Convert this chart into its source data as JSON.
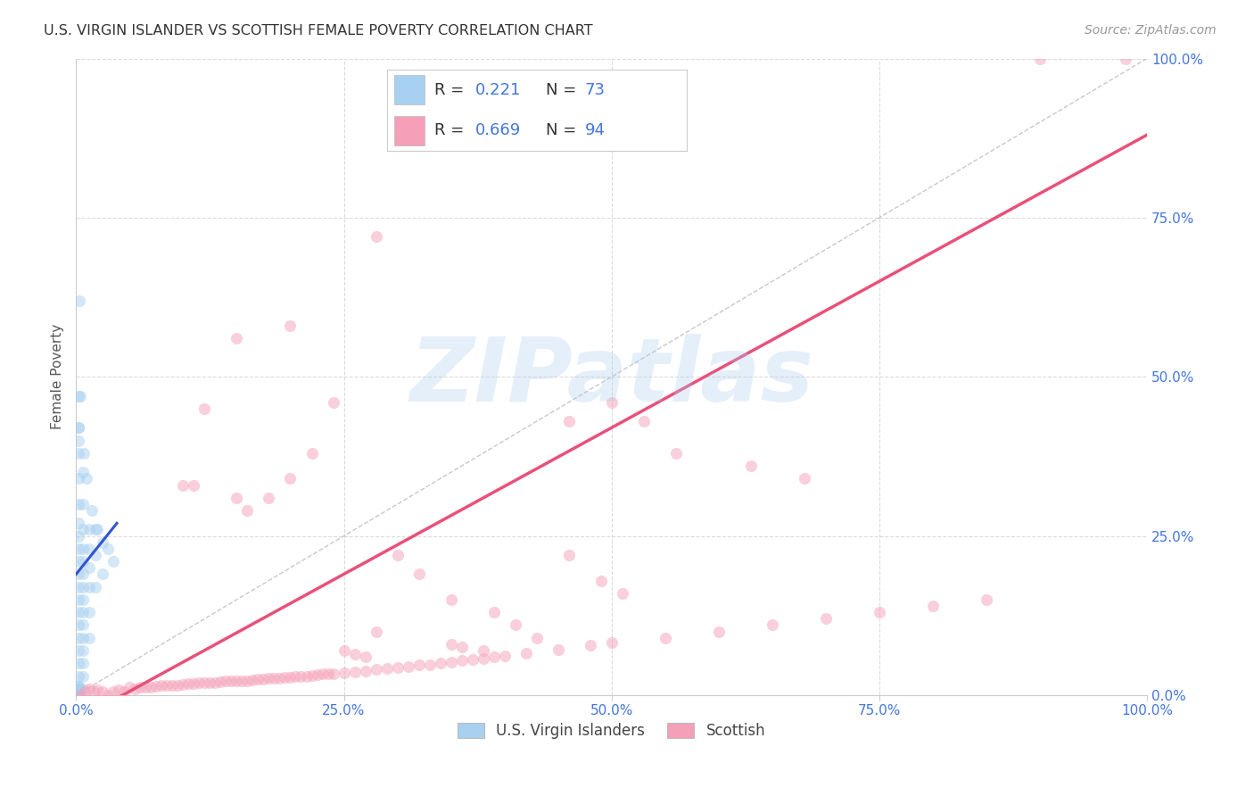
{
  "title": "U.S. VIRGIN ISLANDER VS SCOTTISH FEMALE POVERTY CORRELATION CHART",
  "source": "Source: ZipAtlas.com",
  "ylabel": "Female Poverty",
  "xlim": [
    0,
    1
  ],
  "ylim": [
    0,
    1
  ],
  "ytick_labels": [
    "0.0%",
    "25.0%",
    "50.0%",
    "75.0%",
    "100.0%"
  ],
  "ytick_values": [
    0.0,
    0.25,
    0.5,
    0.75,
    1.0
  ],
  "xtick_values": [
    0.0,
    0.25,
    0.5,
    0.75,
    1.0
  ],
  "xtick_labels": [
    "0.0%",
    "25.0%",
    "50.0%",
    "75.0%",
    "100.0%"
  ],
  "watermark": "ZIPatlas",
  "color_blue": "#A8D0F0",
  "color_pink": "#F5A0B8",
  "line_blue": "#3355CC",
  "line_pink": "#E8517A",
  "text_blue": "#4477DD",
  "title_color": "#333333",
  "grid_color": "#CCCCCC",
  "background": "#FFFFFF",
  "scatter_alpha": 0.5,
  "scatter_size": 90,
  "vi_points": [
    [
      0.002,
      0.47
    ],
    [
      0.002,
      0.42
    ],
    [
      0.002,
      0.38
    ],
    [
      0.002,
      0.34
    ],
    [
      0.002,
      0.3
    ],
    [
      0.002,
      0.27
    ],
    [
      0.002,
      0.25
    ],
    [
      0.002,
      0.23
    ],
    [
      0.002,
      0.21
    ],
    [
      0.002,
      0.19
    ],
    [
      0.002,
      0.17
    ],
    [
      0.002,
      0.15
    ],
    [
      0.002,
      0.13
    ],
    [
      0.002,
      0.11
    ],
    [
      0.002,
      0.09
    ],
    [
      0.002,
      0.07
    ],
    [
      0.002,
      0.05
    ],
    [
      0.002,
      0.03
    ],
    [
      0.002,
      0.01
    ],
    [
      0.002,
      0.005
    ],
    [
      0.002,
      0.002
    ],
    [
      0.002,
      0.001
    ],
    [
      0.002,
      0.0
    ],
    [
      0.002,
      0.0
    ],
    [
      0.002,
      0.0
    ],
    [
      0.002,
      0.0
    ],
    [
      0.006,
      0.35
    ],
    [
      0.006,
      0.3
    ],
    [
      0.006,
      0.26
    ],
    [
      0.006,
      0.23
    ],
    [
      0.006,
      0.21
    ],
    [
      0.006,
      0.19
    ],
    [
      0.006,
      0.17
    ],
    [
      0.006,
      0.15
    ],
    [
      0.006,
      0.13
    ],
    [
      0.006,
      0.11
    ],
    [
      0.006,
      0.09
    ],
    [
      0.006,
      0.07
    ],
    [
      0.006,
      0.05
    ],
    [
      0.006,
      0.03
    ],
    [
      0.006,
      0.01
    ],
    [
      0.012,
      0.26
    ],
    [
      0.012,
      0.23
    ],
    [
      0.012,
      0.2
    ],
    [
      0.012,
      0.17
    ],
    [
      0.012,
      0.13
    ],
    [
      0.012,
      0.09
    ],
    [
      0.018,
      0.26
    ],
    [
      0.018,
      0.22
    ],
    [
      0.018,
      0.17
    ],
    [
      0.025,
      0.24
    ],
    [
      0.025,
      0.19
    ],
    [
      0.035,
      0.21
    ],
    [
      0.003,
      0.62
    ],
    [
      0.004,
      0.47
    ],
    [
      0.007,
      0.38
    ],
    [
      0.01,
      0.34
    ],
    [
      0.015,
      0.29
    ],
    [
      0.02,
      0.26
    ],
    [
      0.03,
      0.23
    ],
    [
      0.002,
      0.42
    ],
    [
      0.002,
      0.4
    ],
    [
      0.002,
      0.005
    ],
    [
      0.002,
      0.003
    ],
    [
      0.002,
      0.004
    ],
    [
      0.002,
      0.006
    ],
    [
      0.002,
      0.007
    ],
    [
      0.002,
      0.008
    ],
    [
      0.002,
      0.009
    ],
    [
      0.002,
      0.01
    ],
    [
      0.002,
      0.012
    ],
    [
      0.002,
      0.014
    ]
  ],
  "sc_points": [
    [
      0.004,
      0.0
    ],
    [
      0.008,
      0.005
    ],
    [
      0.012,
      0.01
    ],
    [
      0.016,
      0.005
    ],
    [
      0.02,
      0.008
    ],
    [
      0.025,
      0.005
    ],
    [
      0.03,
      0.0
    ],
    [
      0.035,
      0.005
    ],
    [
      0.04,
      0.008
    ],
    [
      0.045,
      0.005
    ],
    [
      0.05,
      0.012
    ],
    [
      0.055,
      0.01
    ],
    [
      0.06,
      0.012
    ],
    [
      0.065,
      0.012
    ],
    [
      0.07,
      0.013
    ],
    [
      0.075,
      0.014
    ],
    [
      0.08,
      0.015
    ],
    [
      0.085,
      0.015
    ],
    [
      0.09,
      0.016
    ],
    [
      0.095,
      0.015
    ],
    [
      0.1,
      0.017
    ],
    [
      0.105,
      0.018
    ],
    [
      0.11,
      0.018
    ],
    [
      0.115,
      0.019
    ],
    [
      0.12,
      0.02
    ],
    [
      0.125,
      0.02
    ],
    [
      0.13,
      0.02
    ],
    [
      0.135,
      0.021
    ],
    [
      0.14,
      0.022
    ],
    [
      0.145,
      0.022
    ],
    [
      0.15,
      0.022
    ],
    [
      0.155,
      0.023
    ],
    [
      0.16,
      0.023
    ],
    [
      0.165,
      0.024
    ],
    [
      0.17,
      0.025
    ],
    [
      0.175,
      0.025
    ],
    [
      0.18,
      0.026
    ],
    [
      0.185,
      0.027
    ],
    [
      0.19,
      0.027
    ],
    [
      0.195,
      0.028
    ],
    [
      0.2,
      0.028
    ],
    [
      0.205,
      0.029
    ],
    [
      0.21,
      0.03
    ],
    [
      0.215,
      0.03
    ],
    [
      0.22,
      0.031
    ],
    [
      0.225,
      0.032
    ],
    [
      0.23,
      0.033
    ],
    [
      0.235,
      0.033
    ],
    [
      0.24,
      0.034
    ],
    [
      0.25,
      0.035
    ],
    [
      0.26,
      0.037
    ],
    [
      0.27,
      0.038
    ],
    [
      0.28,
      0.04
    ],
    [
      0.29,
      0.042
    ],
    [
      0.3,
      0.043
    ],
    [
      0.31,
      0.045
    ],
    [
      0.32,
      0.047
    ],
    [
      0.33,
      0.048
    ],
    [
      0.34,
      0.05
    ],
    [
      0.35,
      0.052
    ],
    [
      0.36,
      0.054
    ],
    [
      0.37,
      0.056
    ],
    [
      0.38,
      0.058
    ],
    [
      0.39,
      0.06
    ],
    [
      0.4,
      0.062
    ],
    [
      0.42,
      0.066
    ],
    [
      0.45,
      0.072
    ],
    [
      0.48,
      0.078
    ],
    [
      0.5,
      0.082
    ],
    [
      0.55,
      0.09
    ],
    [
      0.6,
      0.1
    ],
    [
      0.65,
      0.11
    ],
    [
      0.7,
      0.12
    ],
    [
      0.75,
      0.13
    ],
    [
      0.8,
      0.14
    ],
    [
      0.85,
      0.15
    ],
    [
      0.1,
      0.33
    ],
    [
      0.11,
      0.33
    ],
    [
      0.12,
      0.45
    ],
    [
      0.15,
      0.31
    ],
    [
      0.16,
      0.29
    ],
    [
      0.18,
      0.31
    ],
    [
      0.2,
      0.34
    ],
    [
      0.22,
      0.38
    ],
    [
      0.24,
      0.46
    ],
    [
      0.15,
      0.56
    ],
    [
      0.2,
      0.58
    ],
    [
      0.28,
      0.72
    ],
    [
      0.46,
      0.43
    ],
    [
      0.5,
      0.46
    ],
    [
      0.53,
      0.43
    ],
    [
      0.56,
      0.38
    ],
    [
      0.63,
      0.36
    ],
    [
      0.68,
      0.34
    ],
    [
      0.3,
      0.22
    ],
    [
      0.32,
      0.19
    ],
    [
      0.35,
      0.15
    ],
    [
      0.28,
      0.1
    ],
    [
      0.98,
      1.0
    ],
    [
      0.9,
      1.0
    ],
    [
      0.46,
      0.22
    ],
    [
      0.49,
      0.18
    ],
    [
      0.51,
      0.16
    ],
    [
      0.39,
      0.13
    ],
    [
      0.41,
      0.11
    ],
    [
      0.43,
      0.09
    ],
    [
      0.25,
      0.07
    ],
    [
      0.26,
      0.065
    ],
    [
      0.27,
      0.06
    ],
    [
      0.35,
      0.08
    ],
    [
      0.36,
      0.075
    ],
    [
      0.38,
      0.07
    ]
  ],
  "vi_line": [
    [
      0.0,
      0.19
    ],
    [
      0.038,
      0.27
    ]
  ],
  "sc_line": [
    [
      0.0,
      -0.04
    ],
    [
      1.0,
      0.88
    ]
  ]
}
